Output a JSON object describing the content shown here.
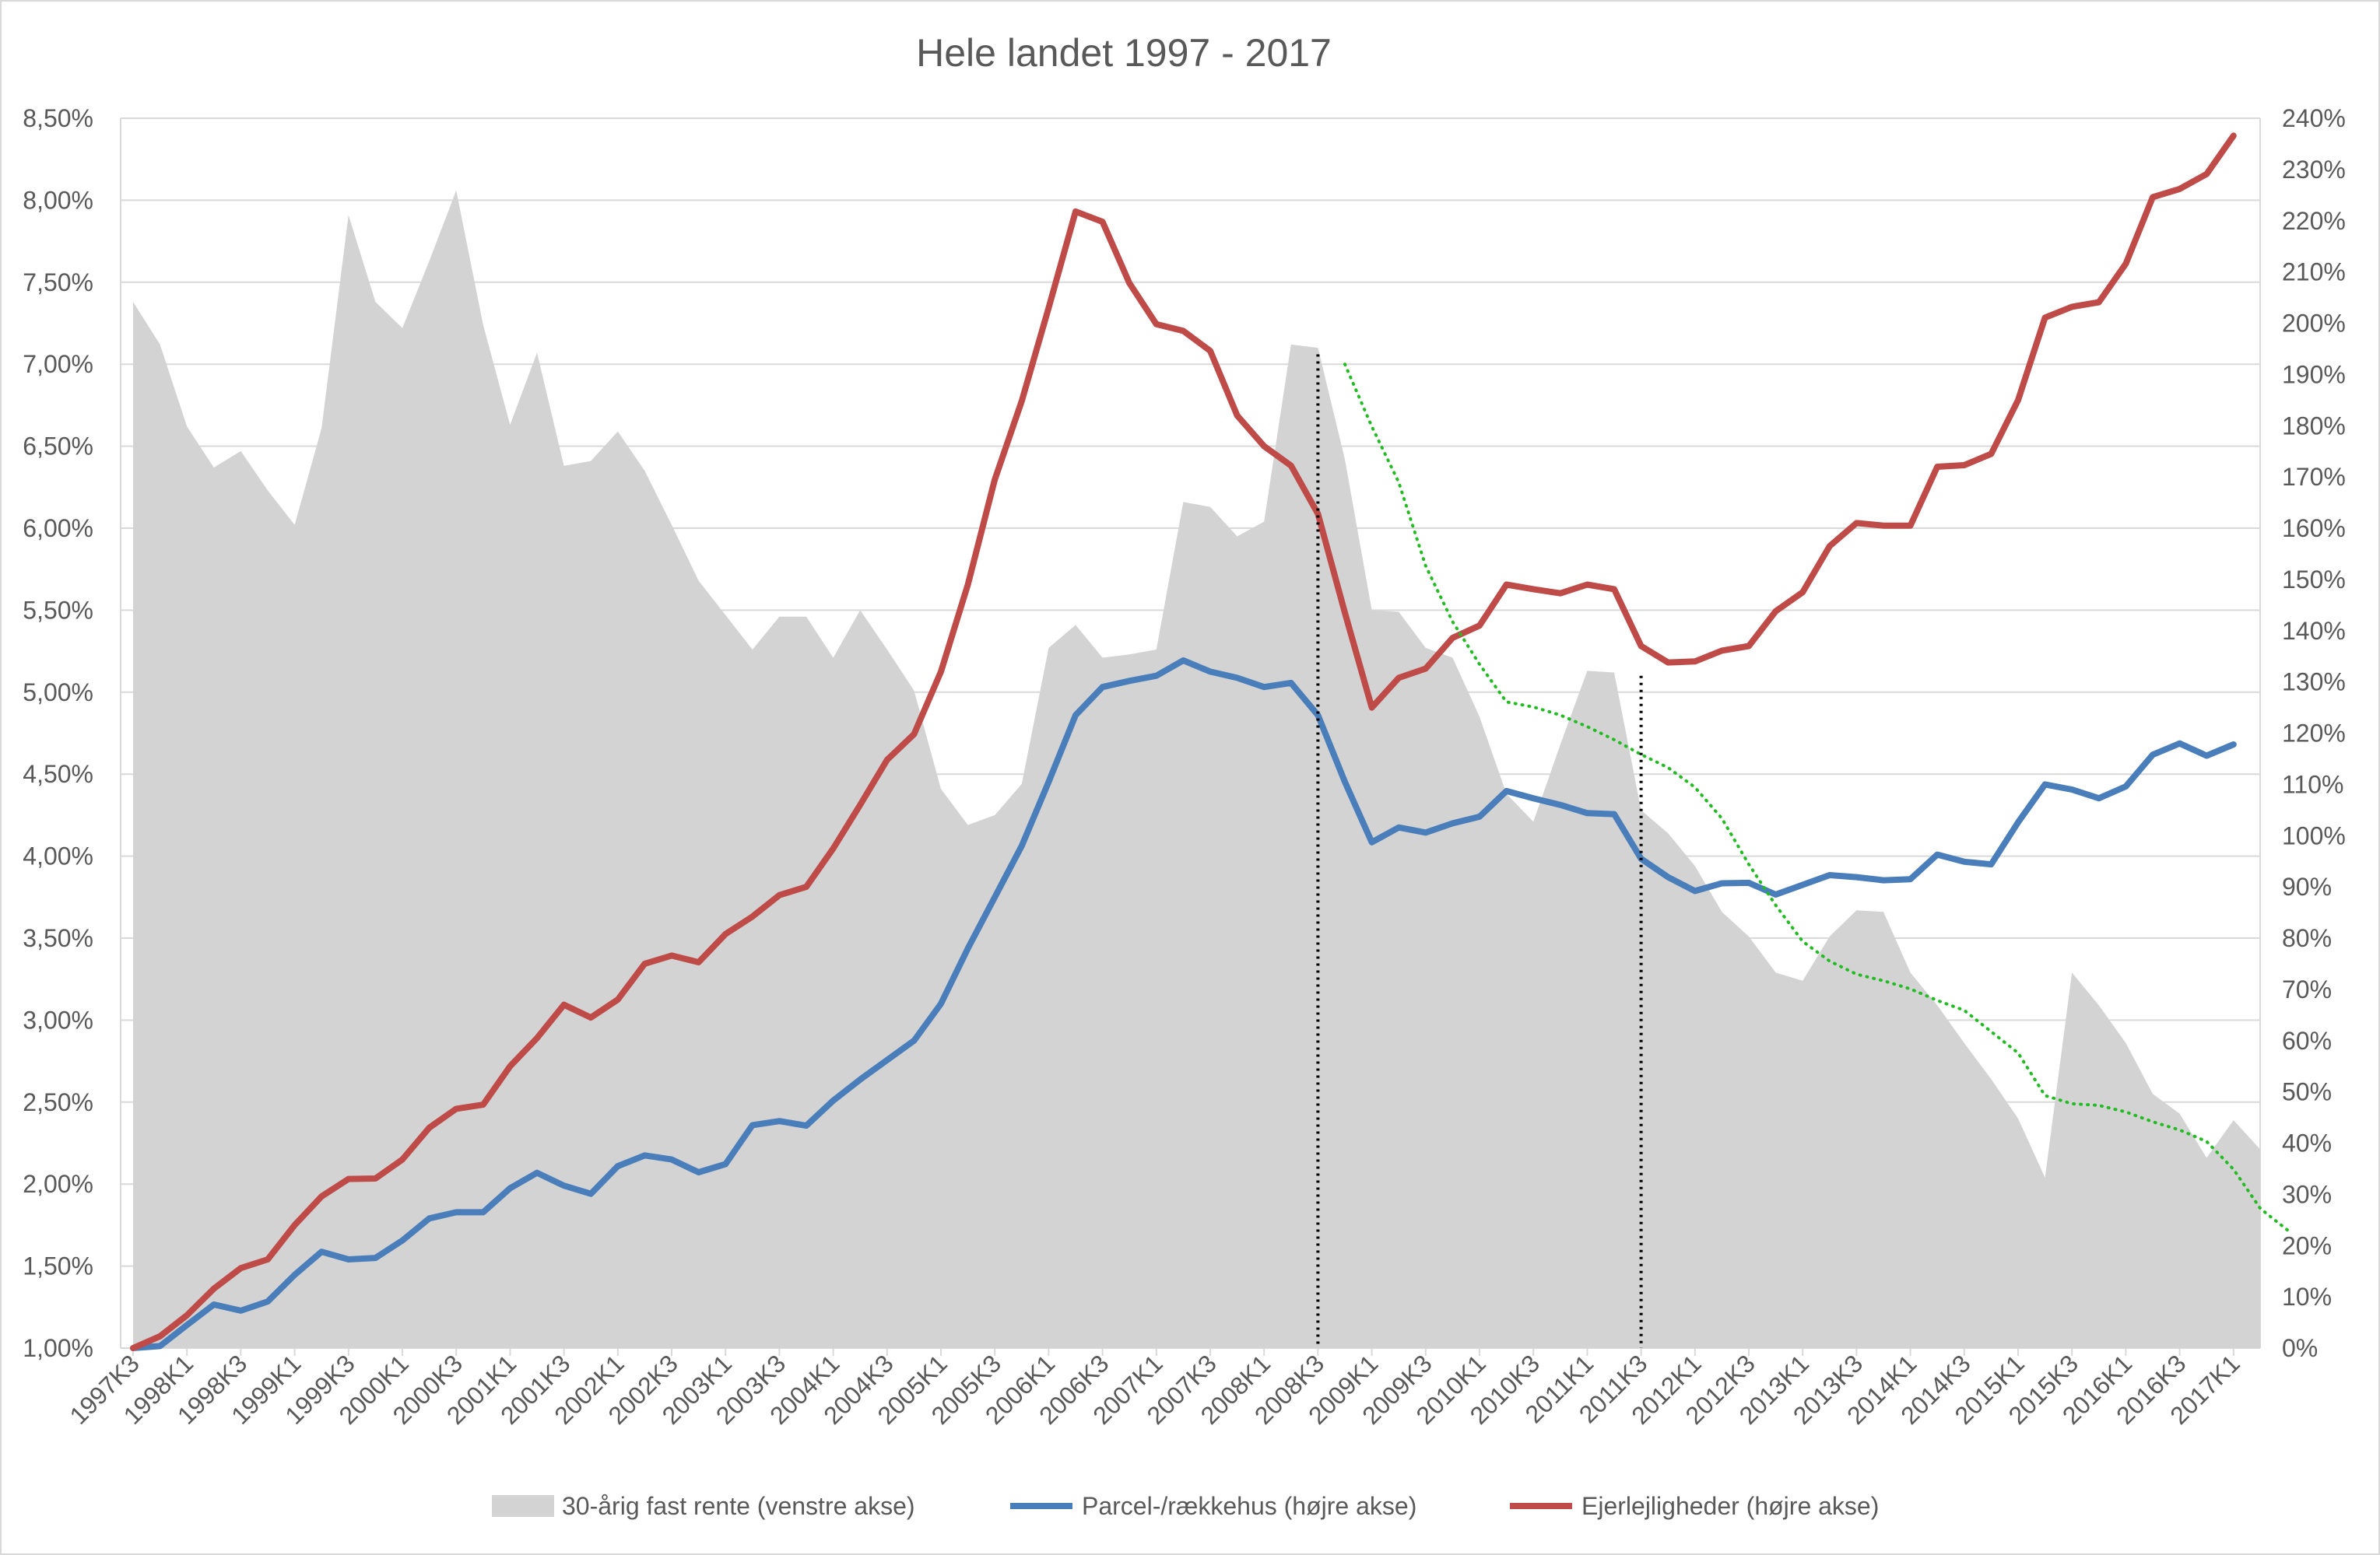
{
  "chart_data": {
    "type": "area",
    "title": "Hele landet 1997 - 2017",
    "x_tick_labels": [
      "1997K3",
      "1998K1",
      "1998K3",
      "1999K1",
      "1999K3",
      "2000K1",
      "2000K3",
      "2001K1",
      "2001K3",
      "2002K1",
      "2002K3",
      "2003K1",
      "2003K3",
      "2004K1",
      "2004K3",
      "2005K1",
      "2005K3",
      "2006K1",
      "2006K3",
      "2007K1",
      "2007K3",
      "2008K1",
      "2008K3",
      "2009K1",
      "2009K3",
      "2010K1",
      "2010K3",
      "2011K1",
      "2011K3",
      "2012K1",
      "2012K3",
      "2013K1",
      "2013K3",
      "2014K1",
      "2014K3",
      "2015K1",
      "2015K3",
      "2016K1",
      "2016K3",
      "2017K1"
    ],
    "left_axis": {
      "ylim": [
        1.0,
        8.5
      ],
      "tick_labels": [
        "1,00%",
        "1,50%",
        "2,00%",
        "2,50%",
        "3,00%",
        "3,50%",
        "4,00%",
        "4,50%",
        "5,00%",
        "5,50%",
        "6,00%",
        "6,50%",
        "7,00%",
        "7,50%",
        "8,00%",
        "8,50%"
      ]
    },
    "right_axis": {
      "ylim": [
        0,
        240
      ],
      "tick_labels": [
        "0%",
        "10%",
        "20%",
        "30%",
        "40%",
        "50%",
        "60%",
        "70%",
        "80%",
        "90%",
        "100%",
        "110%",
        "120%",
        "130%",
        "140%",
        "150%",
        "160%",
        "170%",
        "180%",
        "190%",
        "200%",
        "210%",
        "220%",
        "230%",
        "240%"
      ]
    },
    "grid": "horizontal",
    "legend_position": "bottom",
    "series": [
      {
        "name": "30-årig fast rente (venstre akse)",
        "kind": "area",
        "axis": "left",
        "color": "#d3d3d3",
        "values": [
          7.38,
          7.12,
          6.62,
          6.37,
          6.47,
          6.23,
          6.02,
          6.61,
          7.91,
          7.38,
          7.22,
          7.63,
          8.06,
          7.24,
          6.63,
          7.07,
          6.38,
          6.41,
          6.59,
          6.35,
          6.02,
          5.68,
          5.47,
          5.26,
          5.46,
          5.46,
          5.21,
          5.5,
          5.26,
          5.01,
          4.41,
          4.19,
          4.25,
          4.44,
          5.27,
          5.41,
          5.21,
          5.23,
          5.26,
          6.16,
          6.13,
          5.95,
          6.04,
          7.12,
          7.1,
          6.42,
          5.5,
          5.49,
          5.27,
          5.21,
          4.85,
          4.38,
          4.21,
          4.68,
          5.13,
          5.12,
          4.28,
          4.14,
          3.94,
          3.66,
          3.51,
          3.29,
          3.24,
          3.51,
          3.67,
          3.66,
          3.29,
          3.09,
          2.86,
          2.64,
          2.4,
          2.04,
          3.29,
          3.09,
          2.86,
          2.55,
          2.43,
          2.16,
          2.39,
          2.21
        ]
      },
      {
        "name": "Parcel-/rækkehus (højre akse)",
        "kind": "line",
        "axis": "right",
        "color": "#4a7ebb",
        "values": [
          0,
          0.4,
          4.5,
          8.5,
          7.3,
          9.1,
          14.3,
          18.8,
          17.3,
          17.6,
          21.0,
          25.3,
          26.5,
          26.5,
          31.2,
          34.2,
          31.7,
          30.1,
          35.5,
          37.6,
          36.8,
          34.3,
          35.9,
          43.5,
          44.3,
          43.4,
          48.3,
          52.4,
          56.2,
          60.0,
          67.2,
          78.0,
          88.0,
          98.0,
          110.5,
          123.5,
          129.0,
          130.2,
          131.2,
          134.2,
          132.0,
          130.8,
          129.0,
          129.8,
          123.5,
          110.5,
          98.7,
          101.6,
          100.6,
          102.4,
          103.7,
          108.7,
          107.3,
          106.0,
          104.4,
          104.2,
          95.5,
          91.9,
          89.2,
          90.7,
          90.8,
          88.5,
          90.4,
          92.3,
          91.9,
          91.3,
          91.5,
          96.3,
          94.9,
          94.4,
          102.6,
          110.0,
          109.0,
          107.3,
          109.6,
          115.8,
          118.0,
          115.6,
          117.8
        ]
      },
      {
        "name": "Ejerlejligheder (højre akse)",
        "kind": "line",
        "axis": "right",
        "color": "#be4b48",
        "values": [
          0,
          2.3,
          6.4,
          11.6,
          15.6,
          17.3,
          24.0,
          29.6,
          33.0,
          33.1,
          36.8,
          43.0,
          46.7,
          47.5,
          55.0,
          60.5,
          67.0,
          64.5,
          68.0,
          75.0,
          76.6,
          75.3,
          80.8,
          84.2,
          88.4,
          90.0,
          97.5,
          106.0,
          114.8,
          119.8,
          132.0,
          149.0,
          169.5,
          184.8,
          203.0,
          221.8,
          219.8,
          207.8,
          199.8,
          198.5,
          194.6,
          182.0,
          176.0,
          172.2,
          162.8,
          143.5,
          125.0,
          130.8,
          132.6,
          138.6,
          141.0,
          149.0,
          148.1,
          147.3,
          149.0,
          148.1,
          137.0,
          133.8,
          134.0,
          136.1,
          137.0,
          143.8,
          147.5,
          156.5,
          161.0,
          160.5,
          160.5,
          172.0,
          172.3,
          174.5,
          185.0,
          201.1,
          203.2,
          204.1,
          211.6,
          224.6,
          226.2,
          229.1,
          236.6
        ]
      },
      {
        "name": "",
        "kind": "dotted-line",
        "axis": "left",
        "color": "#22bb22",
        "start_index": 45,
        "values": [
          7.0,
          6.62,
          6.28,
          5.77,
          5.43,
          5.17,
          4.94,
          4.91,
          4.86,
          4.79,
          4.71,
          4.62,
          4.54,
          4.42,
          4.23,
          3.95,
          3.7,
          3.48,
          3.36,
          3.28,
          3.24,
          3.19,
          3.12,
          3.06,
          2.93,
          2.8,
          2.54,
          2.49,
          2.48,
          2.44,
          2.38,
          2.33,
          2.26,
          2.09,
          1.85,
          1.72
        ]
      }
    ],
    "vertical_markers": [
      {
        "style": "dotted",
        "color": "#000000",
        "x_index": 44,
        "top_value_left": 7.06
      },
      {
        "style": "dotted",
        "color": "#000000",
        "x_index": 56,
        "top_value_left": 5.1
      }
    ]
  },
  "legend": [
    {
      "label": "30-årig fast rente (venstre akse)",
      "swatch": "area",
      "color": "#d3d3d3"
    },
    {
      "label": "Parcel-/rækkehus (højre akse)",
      "swatch": "line",
      "color": "#4a7ebb"
    },
    {
      "label": "Ejerlejligheder (højre akse)",
      "swatch": "line",
      "color": "#be4b48"
    }
  ]
}
